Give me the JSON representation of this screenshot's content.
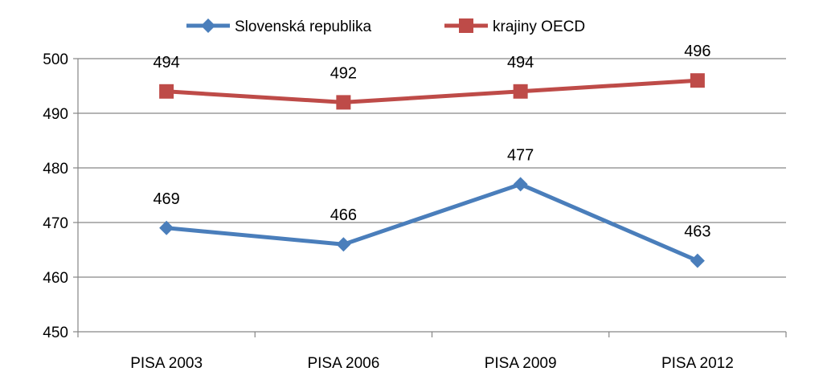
{
  "chart_data": {
    "type": "line",
    "categories": [
      "PISA 2003",
      "PISA 2006",
      "PISA 2009",
      "PISA 2012"
    ],
    "series": [
      {
        "name": "Slovenská republika",
        "values": [
          469,
          466,
          477,
          463
        ],
        "data_labels": [
          "469",
          "466",
          "477",
          "463"
        ],
        "color": "#4a7ebb",
        "marker": "diamond"
      },
      {
        "name": "krajiny OECD",
        "values": [
          494,
          492,
          494,
          496
        ],
        "data_labels": [
          "494",
          "492",
          "494",
          "496"
        ],
        "color": "#be4b48",
        "marker": "square"
      }
    ],
    "ylim": [
      450,
      500
    ],
    "yticks": [
      450,
      460,
      470,
      480,
      490,
      500
    ],
    "ytick_labels": [
      "450",
      "460",
      "470",
      "480",
      "490",
      "500"
    ],
    "title": "",
    "xlabel": "",
    "ylabel": "",
    "grid": true,
    "legend_position": "top-center",
    "grid_color": "#868686",
    "axis_color": "#868686"
  }
}
